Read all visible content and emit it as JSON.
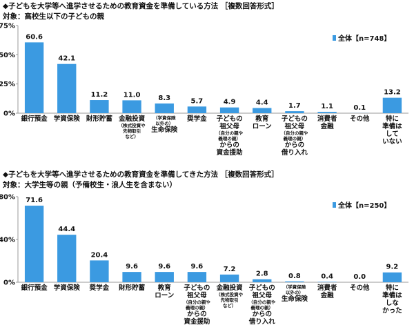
{
  "colors": {
    "bar": "#3b9ae1",
    "axis": "#999999",
    "text": "#111111"
  },
  "chart_data": [
    {
      "type": "bar",
      "title": "◆子どもを大学等へ進学させるための教育資金を準備している方法 ［複数回答形式］",
      "subtitle": "対象：高校生以下の子どもの親",
      "legend": "全体【n=748】",
      "legend_position": "top-right",
      "ylim": [
        0,
        75
      ],
      "yticks": [
        "0%",
        "25%",
        "50%",
        "75%"
      ],
      "ytick_values": [
        0,
        25,
        50,
        75
      ],
      "grid": false,
      "categories": [
        [
          "銀行預金"
        ],
        [
          "学資保険"
        ],
        [
          "財形貯蓄"
        ],
        [
          "金融投資",
          "（株式投資や",
          "先物取引",
          "など）"
        ],
        [
          "（学資保険",
          "以外の）",
          "生命保険"
        ],
        [
          "奨学金"
        ],
        [
          "子どもの",
          "祖父母",
          "（自分の親や",
          "義理の親）",
          "からの",
          "資金援助"
        ],
        [
          "教育",
          "ローン"
        ],
        [
          "子どもの",
          "祖父母",
          "（自分の親や",
          "義理の親）",
          "からの",
          "借り入れ"
        ],
        [
          "消費者",
          "金融"
        ],
        [
          "その他"
        ],
        [
          "特に",
          "準備は",
          "して",
          "いない"
        ]
      ],
      "values": [
        60.6,
        42.1,
        11.2,
        11.0,
        8.3,
        5.7,
        4.9,
        4.4,
        1.7,
        1.1,
        0.1,
        13.2
      ],
      "value_labels": [
        "60.6",
        "42.1",
        "11.2",
        "11.0",
        "8.3",
        "5.7",
        "4.9",
        "4.4",
        "1.7",
        "1.1",
        "0.1",
        "13.2"
      ]
    },
    {
      "type": "bar",
      "title": "◆子どもを大学等へ進学させるための教育資金を準備してきた方法 ［複数回答形式］",
      "subtitle": "対象：大学生等の親（予備校生・浪人生を含まない）",
      "legend": "全体【n=250】",
      "legend_position": "top-right",
      "ylim": [
        0,
        80
      ],
      "yticks": [
        "0%",
        "40%",
        "80%"
      ],
      "ytick_values": [
        0,
        40,
        80
      ],
      "grid": false,
      "categories": [
        [
          "銀行預金"
        ],
        [
          "学資保険"
        ],
        [
          "奨学金"
        ],
        [
          "財形貯蓄"
        ],
        [
          "教育",
          "ローン"
        ],
        [
          "子どもの",
          "祖父母",
          "（自分の親や",
          "義理の親）",
          "からの",
          "資金援助"
        ],
        [
          "金融投資",
          "（株式投資や",
          "先物取引",
          "など）"
        ],
        [
          "子どもの",
          "祖父母",
          "（自分の親や",
          "義理の親）",
          "からの",
          "借り入れ"
        ],
        [
          "（学資保険",
          "以外の）",
          "生命保険"
        ],
        [
          "消費者",
          "金融"
        ],
        [
          "その他"
        ],
        [
          "特に",
          "準備は",
          "しな",
          "かった"
        ]
      ],
      "values": [
        71.6,
        44.4,
        20.4,
        9.6,
        9.6,
        9.6,
        7.2,
        2.8,
        0.8,
        0.4,
        0.0,
        9.2
      ],
      "value_labels": [
        "71.6",
        "44.4",
        "20.4",
        "9.6",
        "9.6",
        "9.6",
        "7.2",
        "2.8",
        "0.8",
        "0.4",
        "0.0",
        "9.2"
      ]
    }
  ]
}
